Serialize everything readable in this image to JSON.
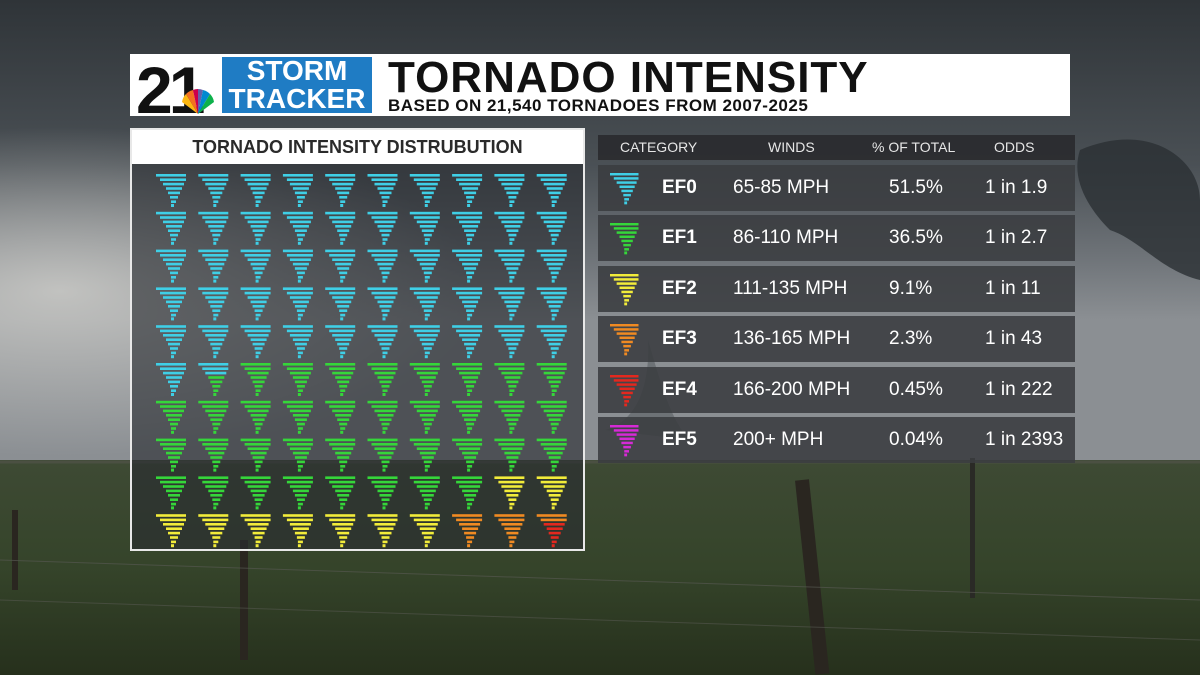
{
  "header": {
    "logo_number": "21",
    "logo_line1": "STORM",
    "logo_line2": "TRACKER",
    "title": "TORNADO INTENSITY",
    "subtitle": "BASED ON 21,540 TORNADOES FROM 2007-2025"
  },
  "distribution_panel": {
    "title": "TORNADO INTENSITY DISTRUBUTION"
  },
  "table": {
    "headers": [
      "CATEGORY",
      "WINDS",
      "% OF TOTAL",
      "ODDS"
    ],
    "rows": [
      {
        "category": "EF0",
        "winds": "65-85 MPH",
        "percent": "51.5%",
        "odds": "1 in 1.9",
        "color": "#3fcfe6"
      },
      {
        "category": "EF1",
        "winds": "86-110 MPH",
        "percent": "36.5%",
        "odds": "1 in 2.7",
        "color": "#35d63a"
      },
      {
        "category": "EF2",
        "winds": "111-135 MPH",
        "percent": "9.1%",
        "odds": "1 in 11",
        "color": "#f2ec3a"
      },
      {
        "category": "EF3",
        "winds": "136-165 MPH",
        "percent": "2.3%",
        "odds": "1 in 43",
        "color": "#f08a22"
      },
      {
        "category": "EF4",
        "winds": "166-200 MPH",
        "percent": "0.45%",
        "odds": "1 in 222",
        "color": "#e4281e"
      },
      {
        "category": "EF5",
        "winds": "200+ MPH",
        "percent": "0.04%",
        "odds": "1 in 2393",
        "color": "#d62ad6"
      }
    ]
  },
  "chart_data": {
    "type": "pictogram",
    "title": "TORNADO INTENSITY DISTRUBUTION",
    "grid": {
      "rows": 10,
      "columns": 10,
      "total_units": 100
    },
    "categories": [
      "EF0",
      "EF1",
      "EF2",
      "EF3",
      "EF4",
      "EF5"
    ],
    "values": [
      51.5,
      36.5,
      9.1,
      2.3,
      0.45,
      0.04
    ],
    "colors": [
      "#3fcfe6",
      "#35d63a",
      "#f2ec3a",
      "#f08a22",
      "#e4281e",
      "#d62ad6"
    ],
    "unit_percent": 1
  }
}
